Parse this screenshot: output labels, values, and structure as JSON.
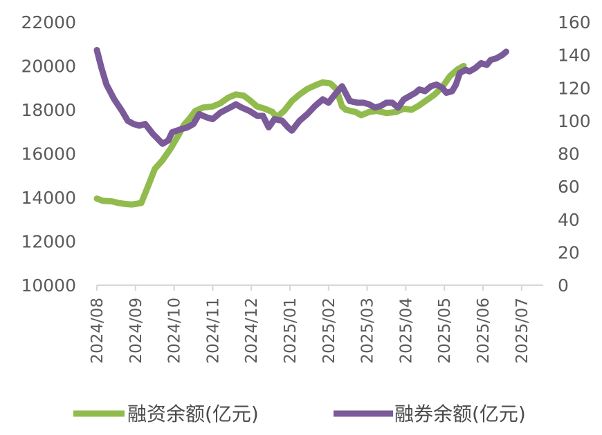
{
  "chart_data": {
    "type": "line",
    "x": [
      "2024/08",
      "2024/09",
      "2024/10",
      "2024/11",
      "2024/12",
      "2025/01",
      "2025/02",
      "2025/03",
      "2025/04",
      "2025/05",
      "2025/06",
      "2025/07"
    ],
    "y_left": {
      "range": [
        10000,
        22000
      ],
      "ticks": [
        "22000",
        "20000",
        "18000",
        "16000",
        "14000",
        "12000",
        "10000"
      ]
    },
    "y_right": {
      "range": [
        0,
        160
      ],
      "ticks": [
        "160",
        "140",
        "120",
        "100",
        "80",
        "60",
        "40",
        "20",
        "0"
      ]
    },
    "series": [
      {
        "name": "融资余额(亿元)",
        "axis": "left",
        "color": "#92bb4e",
        "values": [
          [
            0.0,
            13950
          ],
          [
            0.15,
            13850
          ],
          [
            0.4,
            13820
          ],
          [
            0.55,
            13750
          ],
          [
            0.75,
            13700
          ],
          [
            0.9,
            13680
          ],
          [
            1.0,
            13700
          ],
          [
            1.15,
            13750
          ],
          [
            1.3,
            14400
          ],
          [
            1.5,
            15300
          ],
          [
            1.7,
            15700
          ],
          [
            1.9,
            16200
          ],
          [
            2.1,
            16800
          ],
          [
            2.25,
            17300
          ],
          [
            2.4,
            17600
          ],
          [
            2.55,
            17950
          ],
          [
            2.75,
            18100
          ],
          [
            3.0,
            18150
          ],
          [
            3.2,
            18300
          ],
          [
            3.4,
            18550
          ],
          [
            3.6,
            18700
          ],
          [
            3.8,
            18650
          ],
          [
            3.95,
            18450
          ],
          [
            4.15,
            18150
          ],
          [
            4.35,
            18050
          ],
          [
            4.55,
            17900
          ],
          [
            4.65,
            17650
          ],
          [
            4.85,
            17950
          ],
          [
            5.05,
            18400
          ],
          [
            5.25,
            18700
          ],
          [
            5.45,
            18950
          ],
          [
            5.7,
            19150
          ],
          [
            5.85,
            19250
          ],
          [
            6.05,
            19200
          ],
          [
            6.2,
            18950
          ],
          [
            6.35,
            18150
          ],
          [
            6.45,
            18000
          ],
          [
            6.7,
            17900
          ],
          [
            6.85,
            17750
          ],
          [
            7.05,
            17900
          ],
          [
            7.25,
            17950
          ],
          [
            7.5,
            17850
          ],
          [
            7.75,
            17900
          ],
          [
            7.95,
            18050
          ],
          [
            8.15,
            18000
          ],
          [
            8.35,
            18200
          ],
          [
            8.55,
            18450
          ],
          [
            8.75,
            18700
          ],
          [
            8.95,
            19050
          ],
          [
            9.15,
            19550
          ],
          [
            9.35,
            19850
          ],
          [
            9.5,
            20000
          ]
        ]
      },
      {
        "name": "融券余额(亿元)",
        "axis": "right",
        "color": "#7a5a98",
        "values": [
          [
            0.0,
            143
          ],
          [
            0.12,
            132
          ],
          [
            0.25,
            122
          ],
          [
            0.45,
            113
          ],
          [
            0.65,
            106
          ],
          [
            0.8,
            100
          ],
          [
            0.95,
            98
          ],
          [
            1.1,
            97
          ],
          [
            1.25,
            98
          ],
          [
            1.45,
            92
          ],
          [
            1.7,
            86
          ],
          [
            1.85,
            88
          ],
          [
            1.95,
            93
          ],
          [
            2.2,
            95
          ],
          [
            2.35,
            96
          ],
          [
            2.5,
            98
          ],
          [
            2.65,
            104
          ],
          [
            2.85,
            102
          ],
          [
            3.0,
            101
          ],
          [
            3.2,
            105
          ],
          [
            3.45,
            108
          ],
          [
            3.6,
            110
          ],
          [
            3.75,
            108
          ],
          [
            3.95,
            106
          ],
          [
            4.15,
            103
          ],
          [
            4.3,
            103
          ],
          [
            4.45,
            96
          ],
          [
            4.6,
            101
          ],
          [
            4.8,
            100
          ],
          [
            4.95,
            96
          ],
          [
            5.05,
            94
          ],
          [
            5.25,
            100
          ],
          [
            5.45,
            104
          ],
          [
            5.65,
            109
          ],
          [
            5.85,
            113
          ],
          [
            6.0,
            111
          ],
          [
            6.2,
            117
          ],
          [
            6.35,
            121
          ],
          [
            6.55,
            112
          ],
          [
            6.75,
            111
          ],
          [
            6.9,
            111
          ],
          [
            7.05,
            110
          ],
          [
            7.2,
            108
          ],
          [
            7.35,
            109
          ],
          [
            7.5,
            111
          ],
          [
            7.65,
            111
          ],
          [
            7.8,
            108
          ],
          [
            7.95,
            113
          ],
          [
            8.1,
            115
          ],
          [
            8.25,
            117
          ],
          [
            8.35,
            119
          ],
          [
            8.5,
            118
          ],
          [
            8.65,
            121
          ],
          [
            8.8,
            122
          ],
          [
            8.95,
            120
          ],
          [
            9.05,
            117
          ],
          [
            9.2,
            118
          ],
          [
            9.3,
            122
          ],
          [
            9.4,
            129
          ],
          [
            9.55,
            131
          ],
          [
            9.65,
            130
          ],
          [
            9.8,
            132
          ],
          [
            9.95,
            135
          ],
          [
            10.1,
            134
          ],
          [
            10.2,
            137
          ],
          [
            10.35,
            138
          ],
          [
            10.5,
            140
          ],
          [
            10.6,
            142
          ]
        ]
      }
    ],
    "legend": {
      "position": "bottom"
    },
    "grid": false
  }
}
